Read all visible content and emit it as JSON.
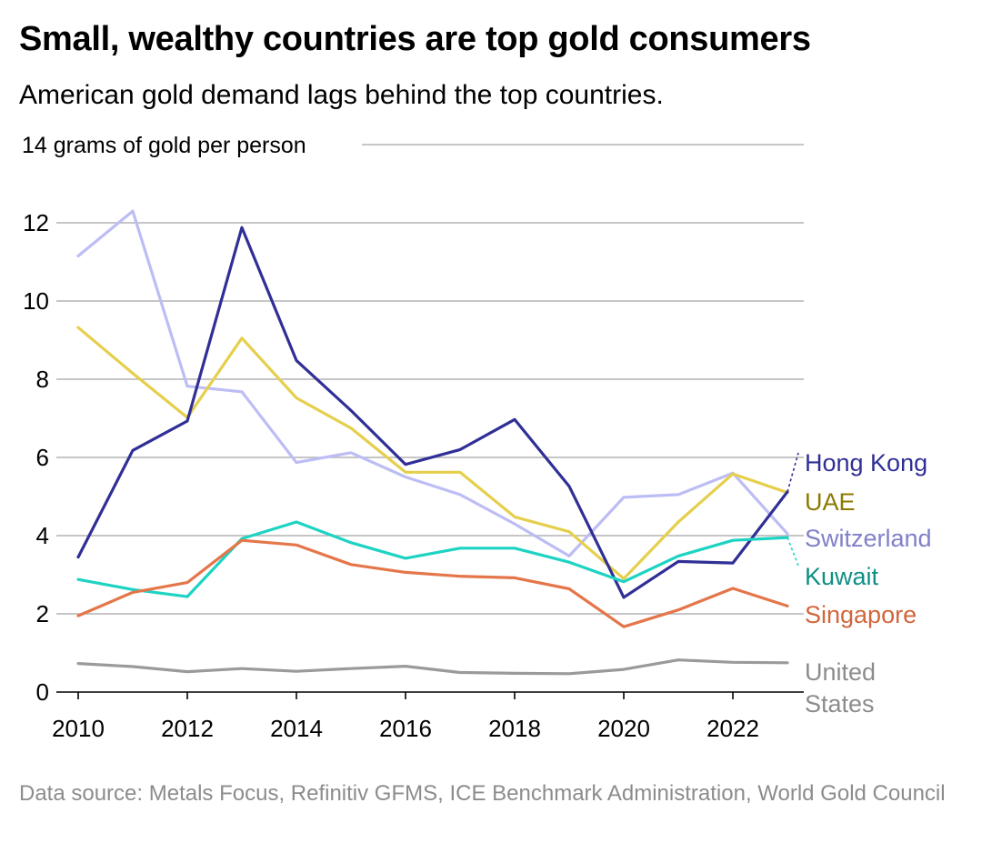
{
  "title": "Small, wealthy countries are top gold consumers",
  "subtitle": "American gold demand lags behind the top countries.",
  "source": "Data source: Metals Focus, Refinitiv GFMS, ICE Benchmark Administration, World Gold Council",
  "chart_data": {
    "type": "line",
    "title": "Small, wealthy countries are top gold consumers",
    "subtitle": "American gold demand lags behind the top countries.",
    "ylabel": "grams of gold per person",
    "xlabel": "",
    "ylim": [
      0,
      14
    ],
    "yticks": [
      0,
      2,
      4,
      6,
      8,
      10,
      12,
      14
    ],
    "ytick_labels": [
      "0",
      "2",
      "4",
      "6",
      "8",
      "10",
      "12",
      "14"
    ],
    "top_tick_label": "14 grams of gold per person",
    "x": [
      2010,
      2011,
      2012,
      2013,
      2014,
      2015,
      2016,
      2017,
      2018,
      2019,
      2020,
      2021,
      2022,
      2023
    ],
    "xticks": [
      2010,
      2012,
      2014,
      2016,
      2018,
      2020,
      2022
    ],
    "xtick_labels": [
      "2010",
      "2012",
      "2014",
      "2016",
      "2018",
      "2020",
      "2022"
    ],
    "grid": true,
    "series": [
      {
        "name": "Switzerland",
        "label": "Switzerland",
        "color": "#bdbdf5",
        "label_color": "#8080c8",
        "values": [
          11.15,
          12.3,
          7.82,
          7.68,
          5.87,
          6.12,
          5.5,
          5.05,
          4.3,
          3.48,
          4.98,
          5.05,
          5.6,
          4.05
        ]
      },
      {
        "name": "UAE",
        "label": "UAE",
        "color": "#e5cf4c",
        "label_color": "#8c7a00",
        "values": [
          9.32,
          8.15,
          7.02,
          9.05,
          7.52,
          6.75,
          5.62,
          5.62,
          4.48,
          4.1,
          2.9,
          4.35,
          5.58,
          5.1
        ]
      },
      {
        "name": "Hong Kong",
        "label": "Hong Kong",
        "color": "#302f96",
        "label_color": "#302f96",
        "values": [
          3.45,
          6.18,
          6.93,
          11.88,
          8.48,
          7.2,
          5.82,
          6.2,
          6.97,
          5.26,
          2.42,
          3.34,
          3.3,
          5.12
        ]
      },
      {
        "name": "Kuwait",
        "label": "Kuwait",
        "color": "#1dd3c3",
        "label_color": "#0f8f84",
        "values": [
          2.88,
          2.62,
          2.44,
          3.92,
          4.35,
          3.82,
          3.42,
          3.68,
          3.68,
          3.32,
          2.82,
          3.48,
          3.88,
          3.95
        ]
      },
      {
        "name": "Singapore",
        "label": "Singapore",
        "color": "#e4764a",
        "label_color": "#d2653a",
        "values": [
          1.95,
          2.55,
          2.8,
          3.88,
          3.76,
          3.26,
          3.06,
          2.96,
          2.92,
          2.64,
          1.67,
          2.1,
          2.65,
          2.2
        ]
      },
      {
        "name": "United States",
        "label": "United States",
        "color": "#9a9a9a",
        "label_color": "#8c8c8c",
        "values": [
          0.73,
          0.65,
          0.52,
          0.6,
          0.53,
          0.6,
          0.66,
          0.5,
          0.48,
          0.47,
          0.58,
          0.82,
          0.76,
          0.75
        ]
      }
    ]
  }
}
